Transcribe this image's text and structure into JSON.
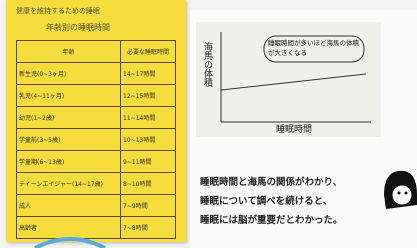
{
  "note": {
    "header": "健康を維持するための睡眠",
    "title": "年齢別の睡眠時間",
    "table": {
      "header": [
        "年齢",
        "必要な睡眠時間"
      ],
      "rows": [
        [
          "新生児(0~3ヶ月)",
          "14~17時間"
        ],
        [
          "乳児(4~11ヶ月)",
          "12~15時間"
        ],
        [
          "幼児(1~2歳)",
          "11~14時間"
        ],
        [
          "学童前(3~5歳)",
          "10~13時間"
        ],
        [
          "学童期(6~13歳)",
          "9~11時間"
        ],
        [
          "ティーンエイジャー(14~17歳)",
          "8~10時間"
        ],
        [
          "成人",
          "7~9時間"
        ],
        [
          "高齢者",
          "7~8時間"
        ]
      ]
    }
  },
  "graph": {
    "y_label": "海馬の体積",
    "x_label": "睡眠時間",
    "bubble": "睡眠時間が多いほど海馬の体積が大きくなる"
  },
  "caption": {
    "lines": [
      "睡眠時間と海馬の関係がわかり、",
      "睡眠について調べを続けると、",
      "睡眠には脳が重要だとわかった。"
    ]
  }
}
